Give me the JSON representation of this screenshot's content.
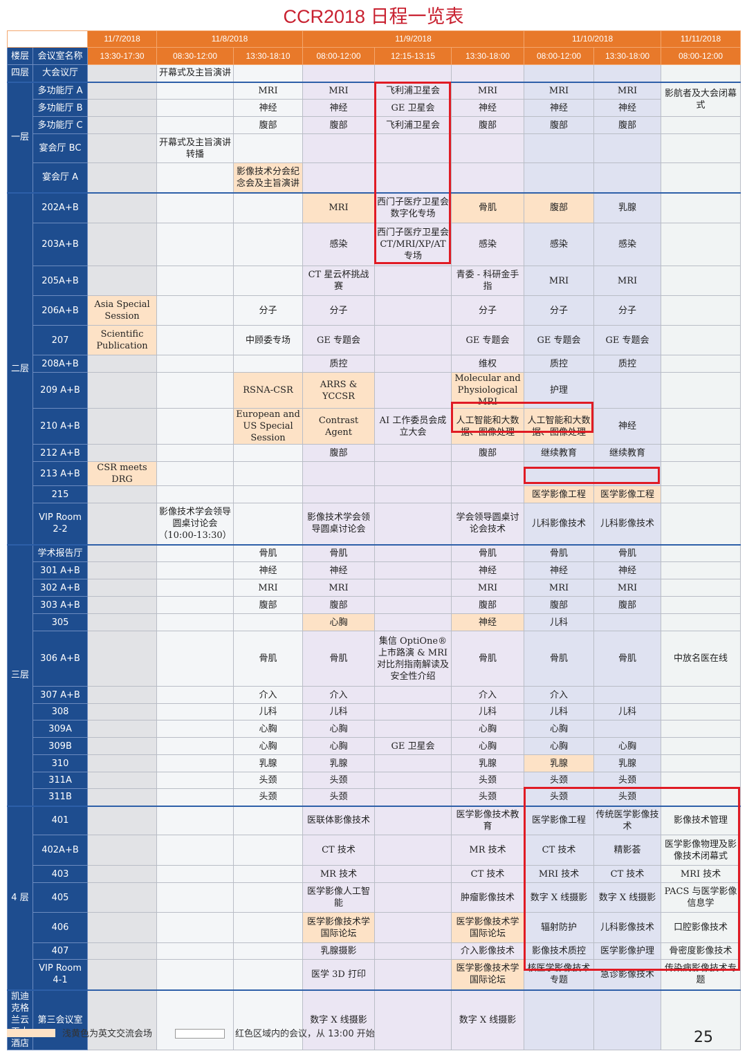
{
  "title": "CCR2018 日程一览表",
  "colors": {
    "header": "#e8792a",
    "floor_blue": "#1e4d8f",
    "english_session": "#fde2c6",
    "red_box": "#e01b24",
    "title": "#c8202f"
  },
  "header": {
    "dates": [
      "11/7/2018",
      "11/8/2018",
      "11/9/2018",
      "11/10/2018",
      "11/11/2018"
    ],
    "floor_label": "楼层",
    "room_label": "会议室名称",
    "times": [
      "13:30-17:30",
      "08:30-12:00",
      "13:30-18:10",
      "08:00-12:00",
      "12:15-13:15",
      "13:30-18:00",
      "08:00-12:00",
      "13:30-18:00",
      "08:00-12:00"
    ]
  },
  "floors": [
    {
      "label": "四层",
      "rows": [
        {
          "room": "大会议厅",
          "cells": [
            "",
            "开幕式及主旨演讲",
            "",
            "",
            "",
            "",
            "",
            "",
            ""
          ]
        }
      ]
    },
    {
      "label": "一层",
      "rows": [
        {
          "room": "多功能厅 A",
          "cells": [
            "",
            "",
            "MRI",
            "MRI",
            "飞利浦卫星会",
            "MRI",
            "MRI",
            "MRI",
            "影航者及大会闭幕式"
          ],
          "spans": {
            "8": 2
          }
        },
        {
          "room": "多功能厅 B",
          "cells": [
            "",
            "",
            "神经",
            "神经",
            "GE 卫星会",
            "神经",
            "神经",
            "神经",
            null
          ]
        },
        {
          "room": "多功能厅 C",
          "cells": [
            "",
            "",
            "腹部",
            "腹部",
            "飞利浦卫星会",
            "腹部",
            "腹部",
            "腹部",
            ""
          ]
        },
        {
          "room": "宴会厅 BC",
          "cells": [
            "",
            "开幕式及主旨演讲转播",
            "",
            "",
            "",
            "",
            "",
            "",
            ""
          ]
        },
        {
          "room": "宴会厅 A",
          "cells": [
            "",
            "",
            "影像技术分会纪念会及主旨演讲",
            "",
            "",
            "",
            "",
            "",
            ""
          ],
          "highlight": [
            2
          ]
        }
      ]
    },
    {
      "label": "二层",
      "rows": [
        {
          "room": "202A+B",
          "cells": [
            "",
            "",
            "",
            "MRI",
            "西门子医疗卫星会数字化专场",
            "骨肌",
            "腹部",
            "乳腺",
            ""
          ],
          "highlight": [
            3,
            5,
            6
          ]
        },
        {
          "room": "203A+B",
          "cells": [
            "",
            "",
            "",
            "感染",
            "西门子医疗卫星会 CT/MRI/XP/AT 专场",
            "感染",
            "感染",
            "感染",
            ""
          ]
        },
        {
          "room": "205A+B",
          "cells": [
            "",
            "",
            "",
            "CT 星云杯挑战赛",
            "",
            "青委 - 科研金手指",
            "MRI",
            "MRI",
            ""
          ]
        },
        {
          "room": "206A+B",
          "cells": [
            "Asia Special Session",
            "",
            "分子",
            "分子",
            "",
            "分子",
            "分子",
            "分子",
            ""
          ],
          "highlight": [
            0
          ]
        },
        {
          "room": "207",
          "cells": [
            "Scientific Publication",
            "",
            "中顾委专场",
            "GE 专题会",
            "",
            "GE 专题会",
            "GE 专题会",
            "GE 专题会",
            ""
          ],
          "highlight": [
            0
          ]
        },
        {
          "room": "208A+B",
          "cells": [
            "",
            "",
            "",
            "质控",
            "",
            "维权",
            "质控",
            "质控",
            ""
          ]
        },
        {
          "room": "209 A+B",
          "cells": [
            "",
            "",
            "RSNA-CSR",
            "ARRS & YCCSR",
            "",
            "Molecular and Physiological MRI",
            "护理",
            "",
            ""
          ],
          "highlight": [
            2,
            3,
            5
          ]
        },
        {
          "room": "210 A+B",
          "cells": [
            "",
            "",
            "European and US Special Session",
            "Contrast Agent",
            "AI 工作委员会成立大会",
            "人工智能和大数据、图像处理",
            "人工智能和大数据、图像处理",
            "神经",
            ""
          ],
          "highlight": [
            2,
            3,
            5,
            6
          ]
        },
        {
          "room": "212 A+B",
          "cells": [
            "",
            "",
            "",
            "腹部",
            "",
            "腹部",
            "继续教育",
            "继续教育",
            ""
          ]
        },
        {
          "room": "213 A+B",
          "cells": [
            "CSR meets DRG",
            "",
            "",
            "",
            "",
            "",
            "",
            "",
            ""
          ],
          "highlight": [
            0
          ]
        },
        {
          "room": "215",
          "cells": [
            "",
            "",
            "",
            "",
            "",
            "",
            "医学影像工程",
            "医学影像工程",
            ""
          ],
          "highlight": [
            6,
            7
          ]
        },
        {
          "room": "VIP Room 2-2",
          "cells": [
            "",
            "影像技术学会领导圆桌讨论会（10:00-13:30）",
            "",
            "影像技术学会领导圆桌讨论会",
            "",
            "学会领导圆桌讨论会技术",
            "儿科影像技术",
            "儿科影像技术",
            ""
          ]
        }
      ]
    },
    {
      "label": "三层",
      "rows": [
        {
          "room": "学术报告厅",
          "cells": [
            "",
            "",
            "骨肌",
            "骨肌",
            "",
            "骨肌",
            "骨肌",
            "骨肌",
            ""
          ]
        },
        {
          "room": "301 A+B",
          "cells": [
            "",
            "",
            "神经",
            "神经",
            "",
            "神经",
            "神经",
            "神经",
            ""
          ]
        },
        {
          "room": "302 A+B",
          "cells": [
            "",
            "",
            "MRI",
            "MRI",
            "",
            "MRI",
            "MRI",
            "MRI",
            ""
          ]
        },
        {
          "room": "303 A+B",
          "cells": [
            "",
            "",
            "腹部",
            "腹部",
            "",
            "腹部",
            "腹部",
            "腹部",
            ""
          ]
        },
        {
          "room": "305",
          "cells": [
            "",
            "",
            "",
            "心胸",
            "",
            "神经",
            "儿科",
            "",
            ""
          ],
          "highlight": [
            3,
            5
          ]
        },
        {
          "room": "306 A+B",
          "cells": [
            "",
            "",
            "骨肌",
            "骨肌",
            "集信 OptiOne® 上市路演 & MRI 对比剂指南解读及安全性介绍",
            "骨肌",
            "骨肌",
            "骨肌",
            "中放名医在线"
          ]
        },
        {
          "room": "307 A+B",
          "cells": [
            "",
            "",
            "介入",
            "介入",
            "",
            "介入",
            "介入",
            "",
            ""
          ]
        },
        {
          "room": "308",
          "cells": [
            "",
            "",
            "儿科",
            "儿科",
            "",
            "儿科",
            "儿科",
            "儿科",
            ""
          ]
        },
        {
          "room": "309A",
          "cells": [
            "",
            "",
            "心胸",
            "心胸",
            "",
            "心胸",
            "心胸",
            "",
            ""
          ]
        },
        {
          "room": "309B",
          "cells": [
            "",
            "",
            "心胸",
            "心胸",
            "GE 卫星会",
            "心胸",
            "心胸",
            "心胸",
            ""
          ]
        },
        {
          "room": "310",
          "cells": [
            "",
            "",
            "乳腺",
            "乳腺",
            "",
            "乳腺",
            "乳腺",
            "乳腺",
            ""
          ],
          "highlight": [
            6
          ]
        },
        {
          "room": "311A",
          "cells": [
            "",
            "",
            "头颈",
            "头颈",
            "",
            "头颈",
            "头颈",
            "头颈",
            ""
          ]
        },
        {
          "room": "311B",
          "cells": [
            "",
            "",
            "头颈",
            "头颈",
            "",
            "头颈",
            "头颈",
            "头颈",
            ""
          ]
        }
      ]
    },
    {
      "label": "4 层",
      "rows": [
        {
          "room": "401",
          "cells": [
            "",
            "",
            "",
            "医联体影像技术",
            "",
            "医学影像技术教育",
            "医学影像工程",
            "传统医学影像技术",
            "影像技术管理"
          ]
        },
        {
          "room": "402A+B",
          "cells": [
            "",
            "",
            "",
            "CT 技术",
            "",
            "MR 技术",
            "CT 技术",
            "精影荟",
            "医学影像物理及影像技术闭幕式"
          ]
        },
        {
          "room": "403",
          "cells": [
            "",
            "",
            "",
            "MR 技术",
            "",
            "CT 技术",
            "MRI 技术",
            "CT 技术",
            "MRI 技术"
          ]
        },
        {
          "room": "405",
          "cells": [
            "",
            "",
            "",
            "医学影像人工智能",
            "",
            "肿瘤影像技术",
            "数字 X 线摄影",
            "数字 X 线摄影",
            "PACS 与医学影像信息学"
          ]
        },
        {
          "room": "406",
          "cells": [
            "",
            "",
            "",
            "医学影像技术学国际论坛",
            "",
            "医学影像技术学国际论坛",
            "辐射防护",
            "儿科影像技术",
            "口腔影像技术"
          ],
          "highlight": [
            3,
            5
          ]
        },
        {
          "room": "407",
          "cells": [
            "",
            "",
            "",
            "乳腺摄影",
            "",
            "介入影像技术",
            "影像技术质控",
            "医学影像护理",
            "骨密度影像技术"
          ]
        },
        {
          "room": "VIP Room 4-1",
          "cells": [
            "",
            "",
            "",
            "医学 3D 打印",
            "",
            "医学影像技术学国际论坛",
            "核医学影像技术专题",
            "急诊影像技术",
            "传染病影像技术专题"
          ],
          "highlight": [
            5
          ]
        }
      ]
    },
    {
      "label": "凯迪克格兰云天大酒店",
      "rows": [
        {
          "room": "第三会议室",
          "cells": [
            "",
            "",
            "",
            "数字 X 线摄影",
            "",
            "数字 X 线摄影",
            "",
            "",
            ""
          ]
        }
      ]
    }
  ],
  "legend": {
    "english": "浅黄色为英文交流会场",
    "red": "红色区域内的会议，从 13:00 开始"
  },
  "page_number": "25"
}
